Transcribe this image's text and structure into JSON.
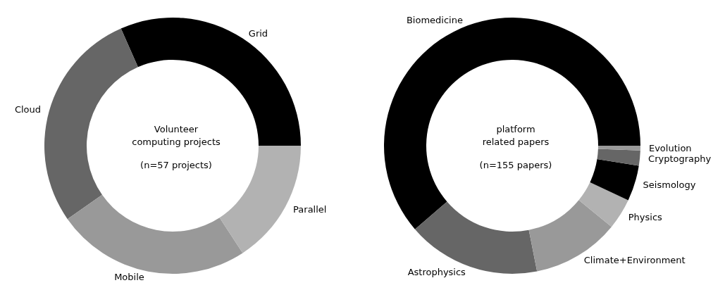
{
  "chart_data": [
    {
      "type": "donut",
      "title": "Volunteer\ncomputing projects",
      "subtitle": "(n=57 projects)",
      "categories": [
        "Grid",
        "Cloud",
        "Mobile",
        "Parallel"
      ],
      "values": [
        31.6,
        28.1,
        24.5,
        15.8
      ],
      "colors": [
        "#000000",
        "#666666",
        "#999999",
        "#b2b2b2"
      ],
      "legend": false
    },
    {
      "type": "donut",
      "title": "platform\nrelated papers",
      "subtitle": "(n=155 papers)",
      "categories": [
        "Biomedicine",
        "Astrophysics",
        "Climate+Environment",
        "Physics",
        "Seismology",
        "Cryptography",
        "Evolution"
      ],
      "values": [
        61.3,
        16.8,
        11.0,
        3.9,
        4.5,
        1.9,
        0.6
      ],
      "colors": [
        "#000000",
        "#666666",
        "#999999",
        "#b2b2b2",
        "#000000",
        "#666666",
        "#999999"
      ],
      "legend": false
    }
  ]
}
